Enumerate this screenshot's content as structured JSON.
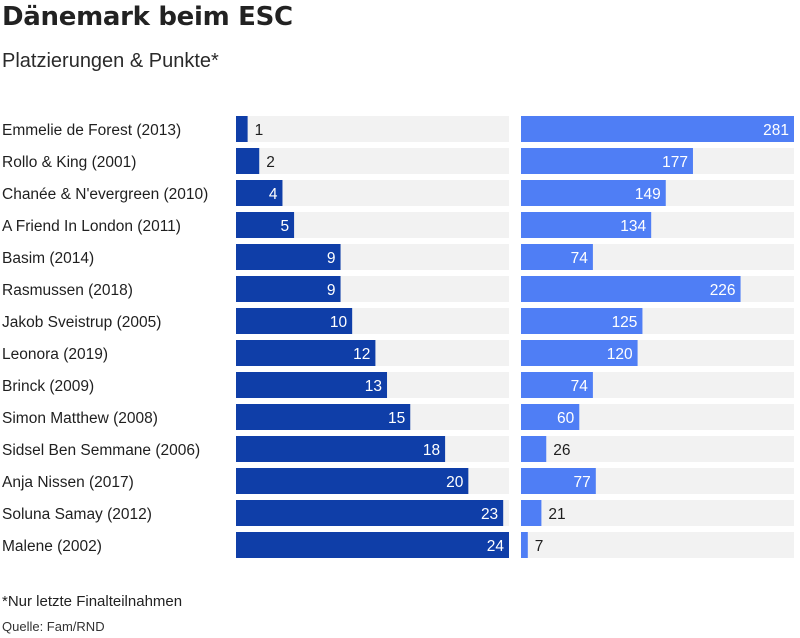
{
  "title": "Dänemark beim ESC",
  "subtitle": "Platzierungen & Punkte*",
  "footnote": "*Nur letzte Finalteilnahmen",
  "source": "Quelle: Fam/RND",
  "colors": {
    "placement": "#0f3ea8",
    "points": "#4f7ef5",
    "track": "#f2f2f2",
    "label_inside": "#ffffff",
    "label_outside": "#1f1f1f"
  },
  "chart_data": {
    "type": "bar",
    "orientation": "horizontal",
    "categories": [
      "Emmelie de Forest (2013)",
      "Rollo & King (2001)",
      "Chanée & N'evergreen (2010)",
      "A Friend In London (2011)",
      "Basim (2014)",
      "Rasmussen (2018)",
      "Jakob Sveistrup (2005)",
      "Leonora (2019)",
      "Brinck (2009)",
      "Simon Matthew (2008)",
      "Sidsel Ben Semmane (2006)",
      "Anja Nissen (2017)",
      "Soluna Samay (2012)",
      "Malene (2002)"
    ],
    "series": [
      {
        "values": [
          1,
          2,
          4,
          5,
          9,
          9,
          10,
          12,
          13,
          15,
          18,
          20,
          23,
          24
        ],
        "xlim": [
          0,
          23.5
        ]
      },
      {
        "values": [
          281,
          177,
          149,
          134,
          74,
          226,
          125,
          120,
          74,
          60,
          26,
          77,
          21,
          7
        ],
        "xlim": [
          0,
          281
        ]
      }
    ],
    "legend": "none",
    "grid": false
  }
}
